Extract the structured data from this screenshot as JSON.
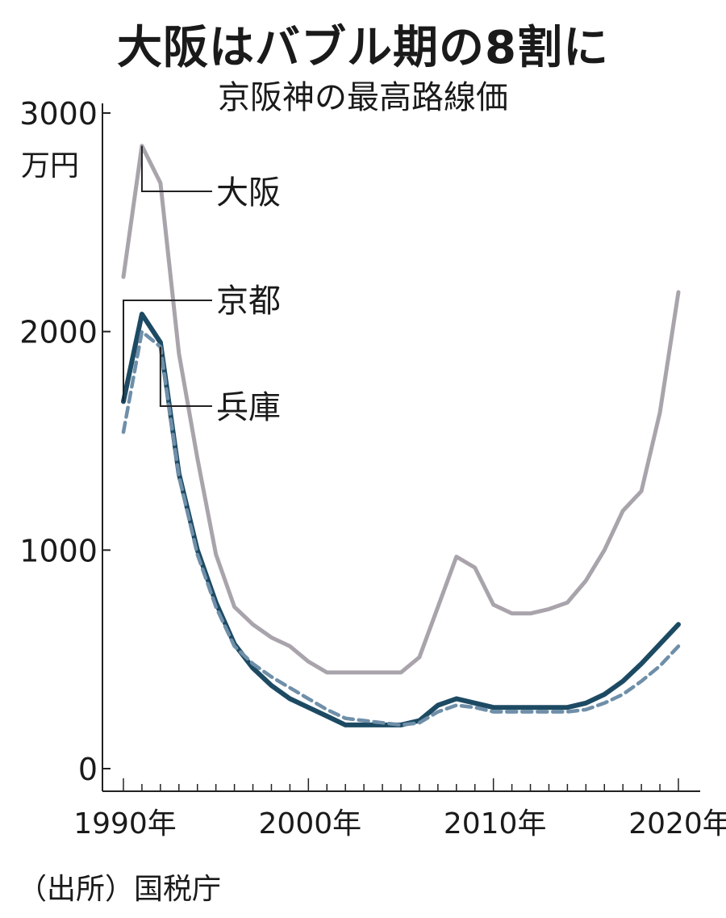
{
  "header": {
    "title": "大阪はバブル期の8割に",
    "subtitle": "京阪神の最高路線価"
  },
  "footer": {
    "source": "（出所）国税庁"
  },
  "chart_data": {
    "type": "line",
    "title": "大阪はバブル期の8割に",
    "subtitle": "京阪神の最高路線価",
    "yunit": "万円",
    "ylim": [
      0,
      3000
    ],
    "xlim": [
      1990,
      2020
    ],
    "yticks": [
      0,
      1000,
      2000,
      3000
    ],
    "xticks": [
      1990,
      2000,
      2010,
      2020
    ],
    "xtick_labels": [
      "1990年",
      "2000年",
      "2010年",
      "2020年"
    ],
    "grid": false,
    "legend": "inline labels",
    "colors": {
      "osaka": "#a9a4ab",
      "kyoto": "#1d4a63",
      "hyogo": "#6f8fa9"
    },
    "x": [
      1990,
      1991,
      1992,
      1993,
      1994,
      1995,
      1996,
      1997,
      1998,
      1999,
      2000,
      2001,
      2002,
      2003,
      2004,
      2005,
      2006,
      2007,
      2008,
      2009,
      2010,
      2011,
      2012,
      2013,
      2014,
      2015,
      2016,
      2017,
      2018,
      2019,
      2020
    ],
    "series": [
      {
        "name": "大阪",
        "style": "solid",
        "width": "medium",
        "values": [
          2250,
          2850,
          2680,
          1900,
          1420,
          980,
          740,
          660,
          600,
          560,
          490,
          440,
          440,
          440,
          440,
          440,
          510,
          740,
          970,
          920,
          750,
          710,
          710,
          730,
          760,
          860,
          1000,
          1180,
          1270,
          1630,
          2180
        ]
      },
      {
        "name": "京都",
        "style": "solid",
        "width": "thick",
        "values": [
          1680,
          2080,
          1950,
          1350,
          1000,
          760,
          570,
          460,
          380,
          320,
          280,
          240,
          200,
          200,
          200,
          200,
          220,
          290,
          320,
          300,
          280,
          280,
          280,
          280,
          280,
          300,
          340,
          400,
          480,
          570,
          660
        ]
      },
      {
        "name": "兵庫",
        "style": "dashed",
        "width": "medium",
        "values": [
          1540,
          2000,
          1930,
          1340,
          980,
          740,
          560,
          480,
          420,
          370,
          320,
          270,
          230,
          220,
          210,
          200,
          210,
          260,
          290,
          280,
          260,
          260,
          260,
          260,
          260,
          270,
          300,
          340,
          400,
          470,
          560
        ]
      }
    ],
    "annotations": [
      "大阪",
      "京都",
      "兵庫"
    ]
  }
}
